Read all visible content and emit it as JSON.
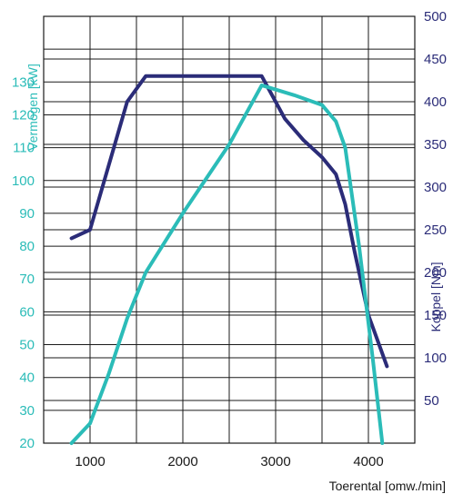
{
  "chart_data": {
    "type": "line",
    "xlabel": "Toerental [omw./min]",
    "y_left_label": "Vermogen [kW]",
    "y_right_label": "Koppel [Nm]",
    "x_ticks": [
      1000,
      2000,
      3000,
      4000
    ],
    "xlim": [
      500,
      4500
    ],
    "y_left_lim": [
      20,
      150
    ],
    "y_left_ticks": [
      20,
      30,
      40,
      50,
      60,
      70,
      80,
      90,
      100,
      110,
      120,
      130
    ],
    "y_right_lim": [
      0,
      500
    ],
    "y_right_ticks": [
      50,
      100,
      150,
      200,
      250,
      300,
      350,
      400,
      450,
      500
    ],
    "grid": true,
    "series": [
      {
        "axis": "right",
        "color": "#2b2c78",
        "x": [
          800,
          1000,
          1400,
          1600,
          2000,
          2500,
          2850,
          3100,
          3300,
          3500,
          3650,
          3750,
          3850,
          4000,
          4200
        ],
        "y": [
          240,
          250,
          400,
          430,
          430,
          430,
          430,
          380,
          355,
          335,
          315,
          280,
          225,
          150,
          90
        ]
      },
      {
        "axis": "left",
        "color": "#2bbcb8",
        "x": [
          800,
          1000,
          1200,
          1400,
          1600,
          2000,
          2500,
          2850,
          3200,
          3500,
          3650,
          3750,
          3900,
          4050,
          4150
        ],
        "y": [
          20,
          26,
          41,
          58,
          72,
          90,
          111,
          129,
          126,
          123,
          118,
          110,
          80,
          45,
          18
        ]
      }
    ]
  }
}
